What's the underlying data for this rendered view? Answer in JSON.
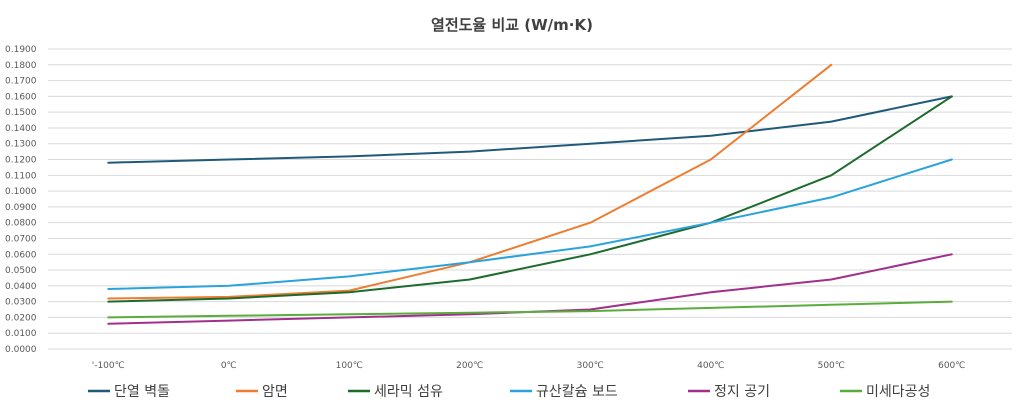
{
  "chart_data": {
    "type": "line",
    "title": "열전도율 비교 (W/m·K)",
    "xlabel": "",
    "ylabel": "",
    "categories": [
      "'-100℃",
      "0℃",
      "100℃",
      "200℃",
      "300℃",
      "400℃",
      "500℃",
      "600℃"
    ],
    "ylim": [
      0,
      0.19
    ],
    "ytick_step": 0.01,
    "ytick_format": "0.0000",
    "grid": true,
    "legend_position": "bottom",
    "series": [
      {
        "name": "단열 벽돌",
        "color": "#1f5a7a",
        "values": [
          0.118,
          0.12,
          0.122,
          0.125,
          0.13,
          0.135,
          0.144,
          0.16
        ]
      },
      {
        "name": "암면",
        "color": "#ed7d31",
        "values": [
          0.032,
          0.033,
          0.037,
          0.055,
          0.08,
          0.12,
          0.18,
          null
        ]
      },
      {
        "name": "세라믹 섬유",
        "color": "#1e6b2e",
        "values": [
          0.03,
          0.032,
          0.036,
          0.044,
          0.06,
          0.08,
          0.11,
          0.16
        ]
      },
      {
        "name": "규산칼슘 보드",
        "color": "#2aa3dc",
        "values": [
          0.038,
          0.04,
          0.046,
          0.055,
          0.065,
          0.08,
          0.096,
          0.12
        ]
      },
      {
        "name": "정지 공기",
        "color": "#a0308a",
        "values": [
          0.016,
          0.018,
          0.02,
          0.022,
          0.025,
          0.036,
          0.044,
          0.06
        ]
      },
      {
        "name": "미세다공성",
        "color": "#5aad3c",
        "values": [
          0.02,
          0.021,
          0.022,
          0.023,
          0.024,
          0.026,
          0.028,
          0.03
        ]
      }
    ]
  }
}
